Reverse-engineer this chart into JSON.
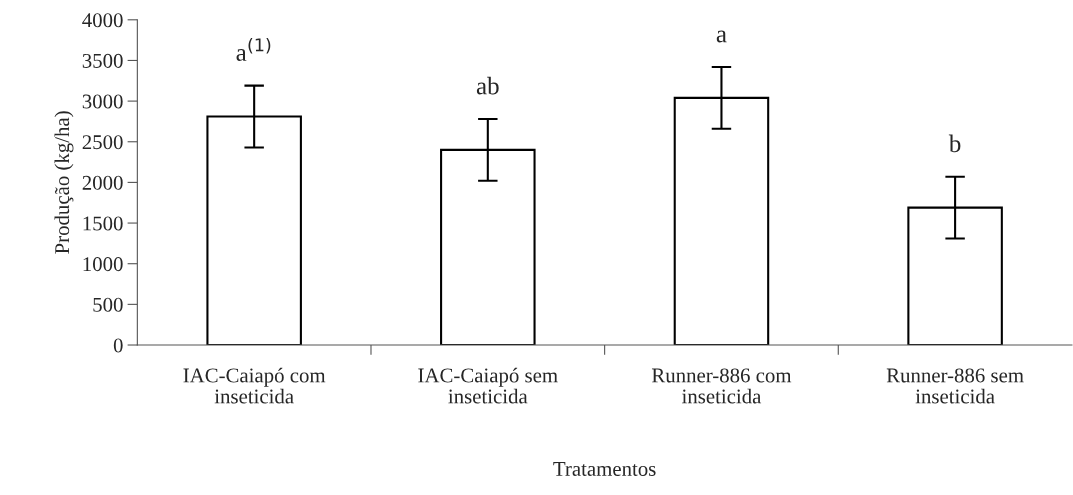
{
  "chart_data": {
    "type": "bar",
    "xlabel": "Tratamentos",
    "ylabel": "Produção (kg/ha)",
    "categories": [
      "IAC-Caiapó com\ninseticida",
      "IAC-Caiapó sem\ninseticida",
      "Runner-886 com\ninseticida",
      "Runner-886 sem\ninseticida"
    ],
    "values": [
      2810,
      2400,
      3040,
      1690
    ],
    "errors": [
      380,
      380,
      380,
      380
    ],
    "color": "#ffffff",
    "ylim": [
      0,
      4000
    ],
    "yticks": [
      0,
      500,
      1000,
      1500,
      2000,
      2500,
      3000,
      3500,
      4000
    ],
    "grid": false,
    "annotations": [
      "a$^{(1)}$",
      "ab",
      "a",
      "b"
    ]
  }
}
